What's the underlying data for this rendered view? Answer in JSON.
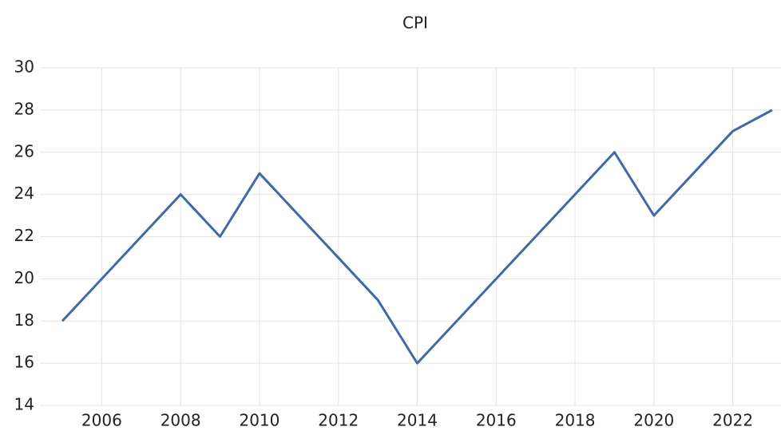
{
  "chart_data": {
    "type": "line",
    "title": "CPI",
    "x": [
      2005,
      2006,
      2007,
      2008,
      2009,
      2010,
      2011,
      2012,
      2013,
      2014,
      2015,
      2016,
      2017,
      2018,
      2019,
      2020,
      2021,
      2022,
      2023
    ],
    "series": [
      {
        "name": "CPI",
        "color": "#4169a8",
        "values": [
          18,
          20,
          22,
          24,
          22,
          25,
          23,
          21,
          19,
          16,
          18,
          20,
          22,
          24,
          26,
          23,
          25,
          27,
          28
        ]
      }
    ],
    "xlim": [
      2005,
      2023
    ],
    "xticks": [
      2006,
      2008,
      2010,
      2012,
      2014,
      2016,
      2018,
      2020,
      2022
    ],
    "ylim": [
      14,
      30
    ],
    "yticks": [
      14,
      16,
      18,
      20,
      22,
      24,
      26,
      28,
      30
    ],
    "grid": true
  }
}
